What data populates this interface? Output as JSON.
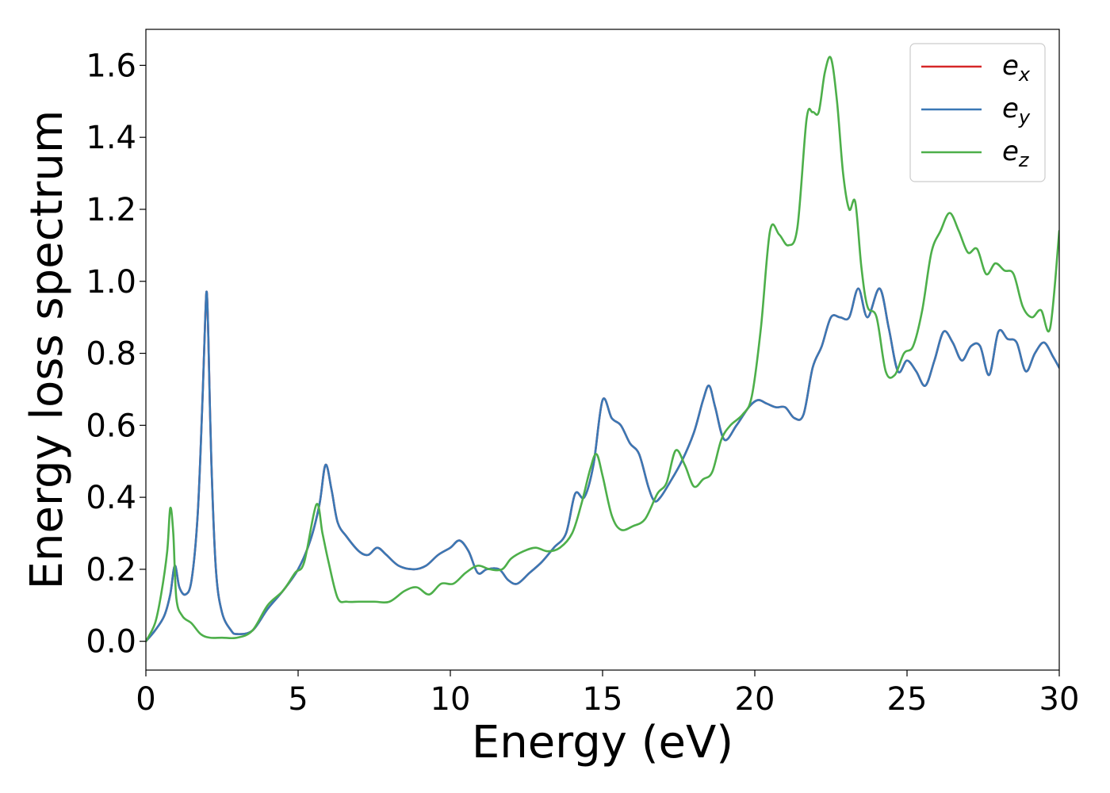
{
  "chart_data": {
    "type": "line",
    "xlabel": "Energy (eV)",
    "ylabel": "Energy loss spectrum",
    "xlim": [
      0,
      30
    ],
    "ylim": [
      -0.08,
      1.7
    ],
    "xticks": [
      0,
      5,
      10,
      15,
      20,
      25,
      30
    ],
    "xtick_labels": [
      "0",
      "5",
      "10",
      "15",
      "20",
      "25",
      "30"
    ],
    "yticks": [
      0.0,
      0.2,
      0.4,
      0.6,
      0.8,
      1.0,
      1.2,
      1.4,
      1.6
    ],
    "ytick_labels": [
      "0.0",
      "0.2",
      "0.4",
      "0.6",
      "0.8",
      "1.0",
      "1.2",
      "1.4",
      "1.6"
    ],
    "grid": false,
    "legend_position": "top-right",
    "series": [
      {
        "name": "e_x",
        "label_base": "e",
        "label_sub": "x",
        "color": "#d62728",
        "x": [
          0,
          0.3,
          0.6,
          0.8,
          0.95,
          1.1,
          1.3,
          1.5,
          1.7,
          1.85,
          1.95,
          2.0,
          2.05,
          2.15,
          2.3,
          2.5,
          2.8,
          3.0,
          3.5,
          4.0,
          4.5,
          5.0,
          5.4,
          5.7,
          5.9,
          6.1,
          6.3,
          6.6,
          7.0,
          7.3,
          7.6,
          7.9,
          8.3,
          8.8,
          9.2,
          9.6,
          10.0,
          10.3,
          10.6,
          10.9,
          11.2,
          11.6,
          11.9,
          12.2,
          12.6,
          13.0,
          13.4,
          13.8,
          14.1,
          14.4,
          14.7,
          15.0,
          15.3,
          15.6,
          15.9,
          16.2,
          16.5,
          16.7,
          16.9,
          17.2,
          17.6,
          18.0,
          18.3,
          18.5,
          18.7,
          19.0,
          19.4,
          19.8,
          20.1,
          20.4,
          20.7,
          21.0,
          21.3,
          21.6,
          21.9,
          22.2,
          22.5,
          22.8,
          23.1,
          23.4,
          23.7,
          24.1,
          24.4,
          24.7,
          25.0,
          25.3,
          25.6,
          25.9,
          26.2,
          26.5,
          26.8,
          27.1,
          27.4,
          27.7,
          28.0,
          28.3,
          28.6,
          28.9,
          29.2,
          29.5,
          29.8,
          30.0
        ],
        "y": [
          0.0,
          0.03,
          0.07,
          0.13,
          0.21,
          0.15,
          0.13,
          0.17,
          0.35,
          0.65,
          0.9,
          0.97,
          0.85,
          0.5,
          0.2,
          0.08,
          0.03,
          0.02,
          0.03,
          0.09,
          0.14,
          0.2,
          0.28,
          0.38,
          0.49,
          0.42,
          0.33,
          0.29,
          0.25,
          0.24,
          0.26,
          0.24,
          0.21,
          0.2,
          0.21,
          0.24,
          0.26,
          0.28,
          0.25,
          0.19,
          0.2,
          0.2,
          0.17,
          0.16,
          0.19,
          0.22,
          0.26,
          0.3,
          0.41,
          0.4,
          0.49,
          0.67,
          0.62,
          0.6,
          0.55,
          0.52,
          0.43,
          0.39,
          0.4,
          0.44,
          0.5,
          0.58,
          0.67,
          0.71,
          0.65,
          0.56,
          0.6,
          0.65,
          0.67,
          0.66,
          0.65,
          0.65,
          0.62,
          0.63,
          0.76,
          0.82,
          0.9,
          0.9,
          0.9,
          0.98,
          0.9,
          0.98,
          0.87,
          0.75,
          0.78,
          0.75,
          0.71,
          0.78,
          0.86,
          0.83,
          0.78,
          0.82,
          0.82,
          0.74,
          0.86,
          0.84,
          0.83,
          0.75,
          0.8,
          0.83,
          0.79,
          0.76
        ]
      },
      {
        "name": "e_y",
        "label_base": "e",
        "label_sub": "y",
        "color": "#3a78b5",
        "x": [
          0,
          0.3,
          0.6,
          0.8,
          0.95,
          1.1,
          1.3,
          1.5,
          1.7,
          1.85,
          1.95,
          2.0,
          2.05,
          2.15,
          2.3,
          2.5,
          2.8,
          3.0,
          3.5,
          4.0,
          4.5,
          5.0,
          5.4,
          5.7,
          5.9,
          6.1,
          6.3,
          6.6,
          7.0,
          7.3,
          7.6,
          7.9,
          8.3,
          8.8,
          9.2,
          9.6,
          10.0,
          10.3,
          10.6,
          10.9,
          11.2,
          11.6,
          11.9,
          12.2,
          12.6,
          13.0,
          13.4,
          13.8,
          14.1,
          14.4,
          14.7,
          15.0,
          15.3,
          15.6,
          15.9,
          16.2,
          16.5,
          16.7,
          16.9,
          17.2,
          17.6,
          18.0,
          18.3,
          18.5,
          18.7,
          19.0,
          19.4,
          19.8,
          20.1,
          20.4,
          20.7,
          21.0,
          21.3,
          21.6,
          21.9,
          22.2,
          22.5,
          22.8,
          23.1,
          23.4,
          23.7,
          24.1,
          24.4,
          24.7,
          25.0,
          25.3,
          25.6,
          25.9,
          26.2,
          26.5,
          26.8,
          27.1,
          27.4,
          27.7,
          28.0,
          28.3,
          28.6,
          28.9,
          29.2,
          29.5,
          29.8,
          30.0
        ],
        "y": [
          0.0,
          0.03,
          0.07,
          0.13,
          0.21,
          0.15,
          0.13,
          0.17,
          0.35,
          0.65,
          0.9,
          0.97,
          0.85,
          0.5,
          0.2,
          0.08,
          0.03,
          0.02,
          0.03,
          0.09,
          0.14,
          0.2,
          0.28,
          0.38,
          0.49,
          0.42,
          0.33,
          0.29,
          0.25,
          0.24,
          0.26,
          0.24,
          0.21,
          0.2,
          0.21,
          0.24,
          0.26,
          0.28,
          0.25,
          0.19,
          0.2,
          0.2,
          0.17,
          0.16,
          0.19,
          0.22,
          0.26,
          0.3,
          0.41,
          0.4,
          0.49,
          0.67,
          0.62,
          0.6,
          0.55,
          0.52,
          0.43,
          0.39,
          0.4,
          0.44,
          0.5,
          0.58,
          0.67,
          0.71,
          0.65,
          0.56,
          0.6,
          0.65,
          0.67,
          0.66,
          0.65,
          0.65,
          0.62,
          0.63,
          0.76,
          0.82,
          0.9,
          0.9,
          0.9,
          0.98,
          0.9,
          0.98,
          0.87,
          0.75,
          0.78,
          0.75,
          0.71,
          0.78,
          0.86,
          0.83,
          0.78,
          0.82,
          0.82,
          0.74,
          0.86,
          0.84,
          0.83,
          0.75,
          0.8,
          0.83,
          0.79,
          0.76
        ]
      },
      {
        "name": "e_z",
        "label_base": "e",
        "label_sub": "z",
        "color": "#4daf4a",
        "x": [
          0,
          0.3,
          0.5,
          0.7,
          0.8,
          0.9,
          1.0,
          1.2,
          1.5,
          1.8,
          2.1,
          2.5,
          3.0,
          3.5,
          4.0,
          4.5,
          4.9,
          5.2,
          5.6,
          5.8,
          6.0,
          6.3,
          6.6,
          7.0,
          7.5,
          8.0,
          8.5,
          8.9,
          9.3,
          9.7,
          10.1,
          10.5,
          10.9,
          11.3,
          11.7,
          12.0,
          12.4,
          12.8,
          13.2,
          13.6,
          14.0,
          14.3,
          14.6,
          14.8,
          15.0,
          15.3,
          15.6,
          16.0,
          16.4,
          16.8,
          17.1,
          17.4,
          17.7,
          18.0,
          18.3,
          18.6,
          18.9,
          19.2,
          19.6,
          19.9,
          20.2,
          20.5,
          20.8,
          21.1,
          21.4,
          21.7,
          21.9,
          22.1,
          22.3,
          22.5,
          22.7,
          22.9,
          23.1,
          23.3,
          23.5,
          23.7,
          24.0,
          24.3,
          24.6,
          24.9,
          25.2,
          25.5,
          25.8,
          26.1,
          26.4,
          26.7,
          27.0,
          27.3,
          27.6,
          27.9,
          28.2,
          28.5,
          28.8,
          29.1,
          29.4,
          29.7,
          30.0
        ],
        "y": [
          0.0,
          0.05,
          0.13,
          0.25,
          0.37,
          0.3,
          0.12,
          0.07,
          0.05,
          0.02,
          0.01,
          0.01,
          0.01,
          0.03,
          0.1,
          0.14,
          0.19,
          0.22,
          0.38,
          0.3,
          0.22,
          0.12,
          0.11,
          0.11,
          0.11,
          0.11,
          0.14,
          0.15,
          0.13,
          0.16,
          0.16,
          0.19,
          0.21,
          0.2,
          0.2,
          0.23,
          0.25,
          0.26,
          0.25,
          0.26,
          0.3,
          0.38,
          0.48,
          0.52,
          0.46,
          0.35,
          0.31,
          0.32,
          0.34,
          0.41,
          0.44,
          0.53,
          0.49,
          0.43,
          0.45,
          0.47,
          0.56,
          0.6,
          0.63,
          0.68,
          0.87,
          1.14,
          1.13,
          1.1,
          1.15,
          1.45,
          1.47,
          1.47,
          1.58,
          1.62,
          1.5,
          1.3,
          1.2,
          1.22,
          1.04,
          0.93,
          0.9,
          0.75,
          0.74,
          0.8,
          0.82,
          0.92,
          1.08,
          1.14,
          1.19,
          1.14,
          1.08,
          1.09,
          1.02,
          1.05,
          1.03,
          1.02,
          0.93,
          0.9,
          0.92,
          0.87,
          1.14
        ]
      }
    ]
  }
}
